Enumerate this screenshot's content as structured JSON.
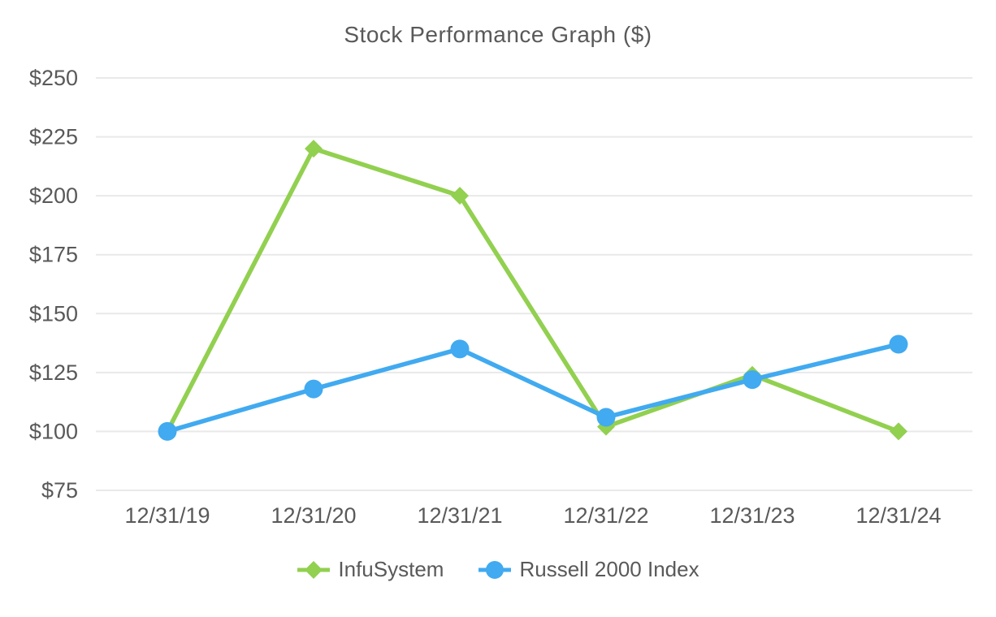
{
  "chart_data": {
    "type": "line",
    "title": "Stock Performance Graph ($)",
    "xlabel": "",
    "ylabel": "",
    "categories": [
      "12/31/19",
      "12/31/20",
      "12/31/21",
      "12/31/22",
      "12/31/23",
      "12/31/24"
    ],
    "series": [
      {
        "name": "InfuSystem",
        "marker": "diamond",
        "color": "#92D050",
        "values": [
          100,
          220,
          200,
          102,
          124,
          100
        ]
      },
      {
        "name": "Russell 2000 Index",
        "marker": "circle",
        "color": "#41AAF0",
        "values": [
          100,
          118,
          135,
          106,
          122,
          137
        ]
      }
    ],
    "ylim": [
      75,
      250
    ],
    "ytick_step": 25,
    "ytick_labels": [
      "$75",
      "$100",
      "$125",
      "$150",
      "$175",
      "$200",
      "$225",
      "$250"
    ],
    "grid": true,
    "gridline_color": "#E9E9E9",
    "text_color": "#595959",
    "legend_position": "bottom"
  }
}
